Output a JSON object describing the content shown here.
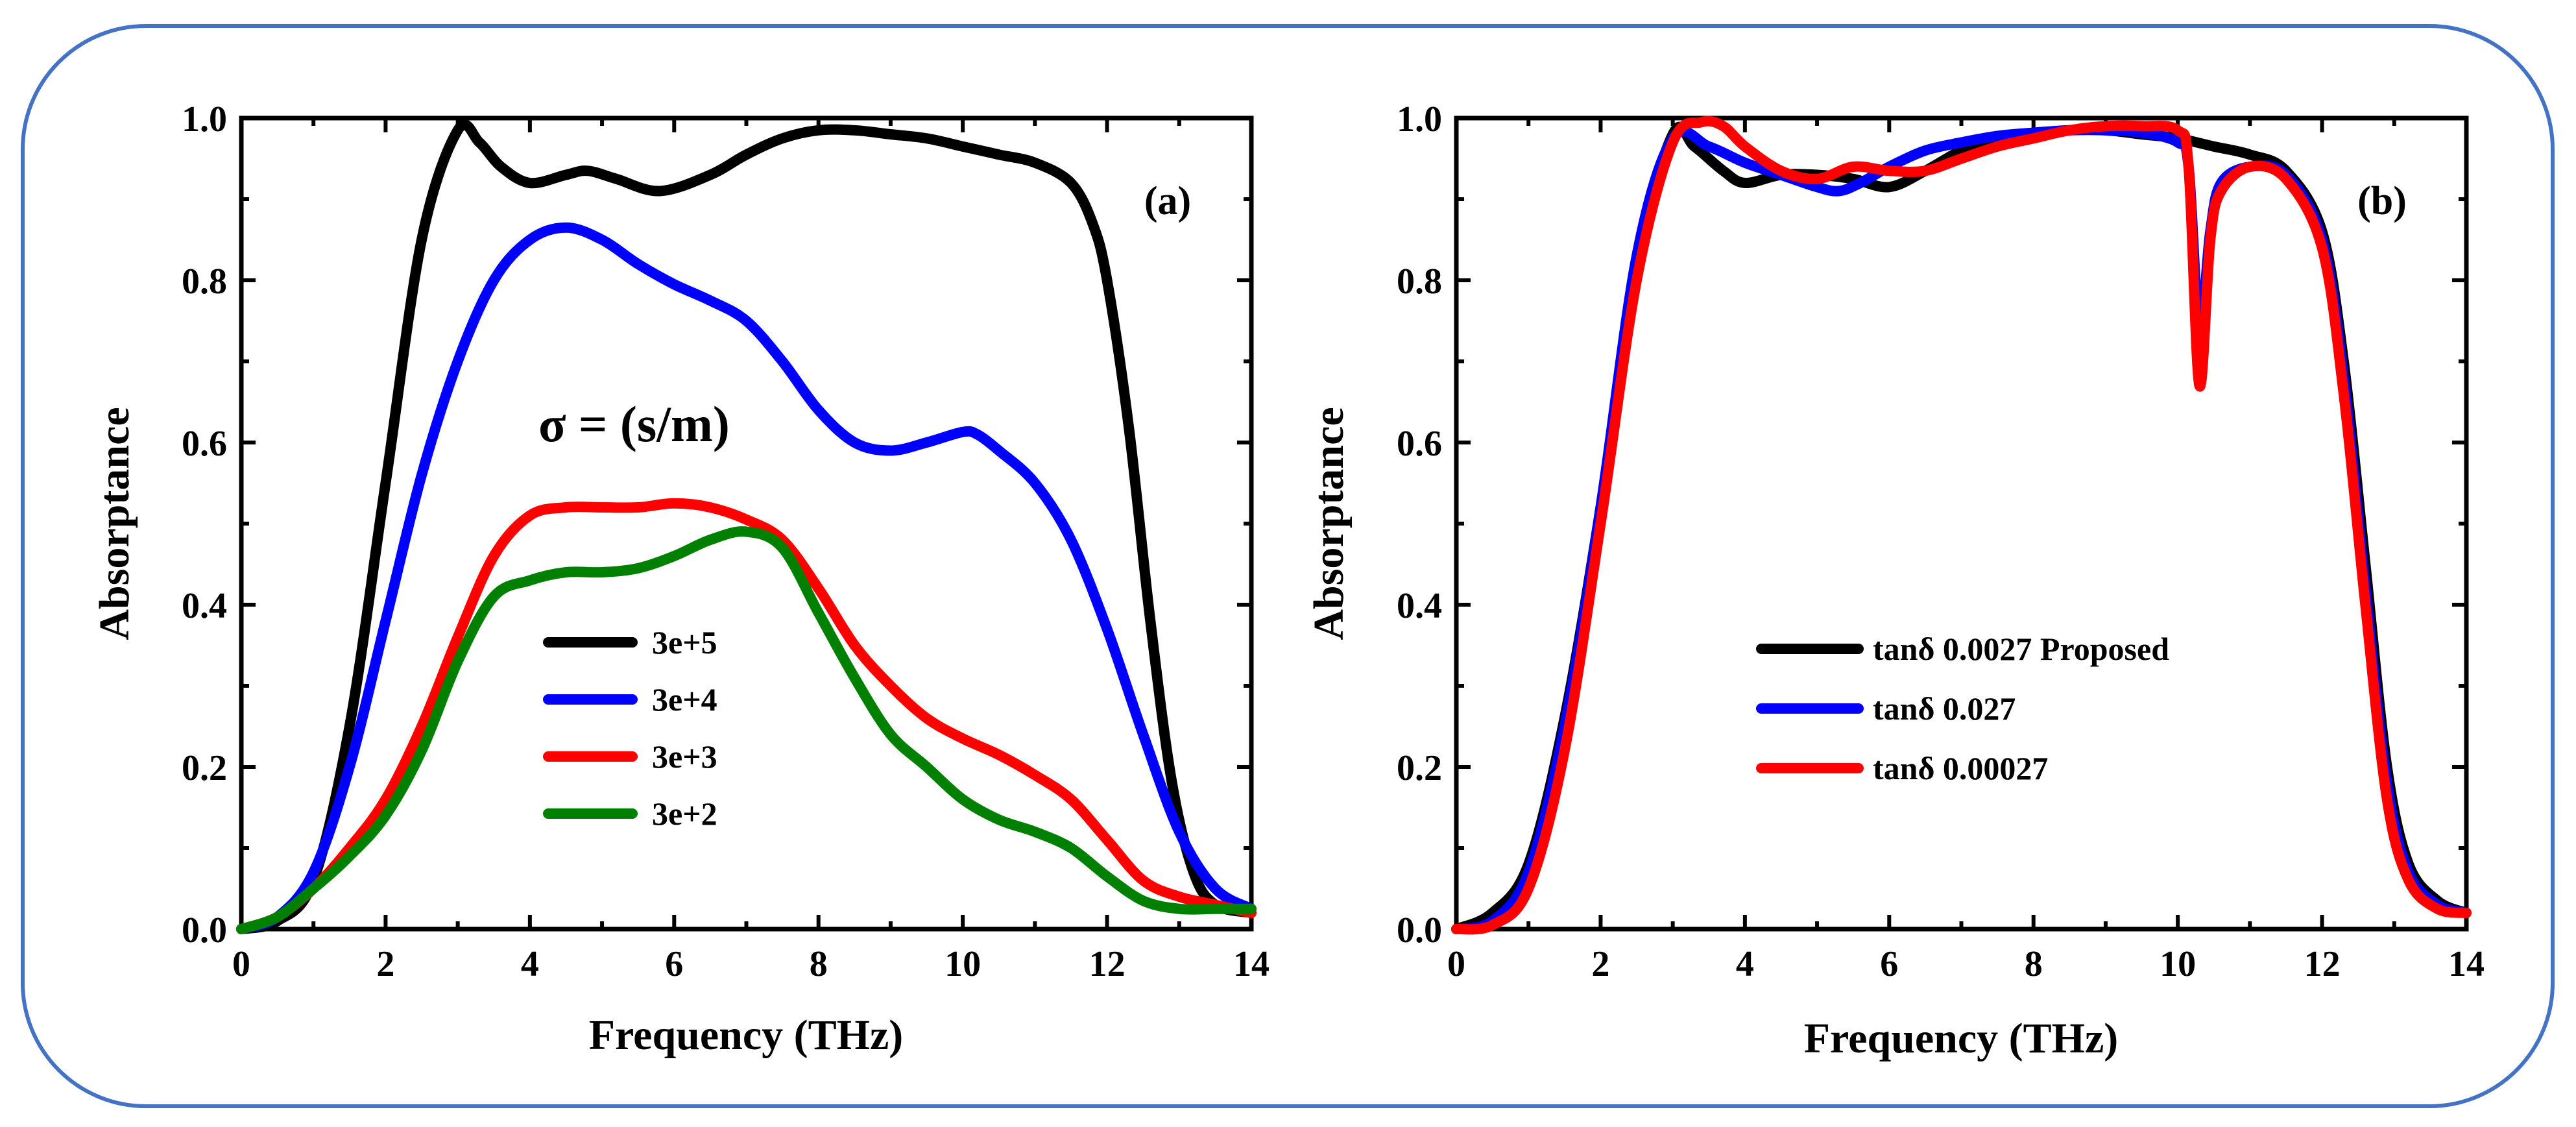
{
  "chart_data": [
    {
      "type": "line",
      "panel_label": "(a)",
      "xlabel": "Frequency (THz)",
      "ylabel": "Absorptance",
      "xlim": [
        0,
        14
      ],
      "ylim": [
        0,
        1.0
      ],
      "x_ticks": [
        "0",
        "2",
        "4",
        "6",
        "8",
        "10",
        "12",
        "14"
      ],
      "y_ticks": [
        "0.0",
        "0.2",
        "0.4",
        "0.6",
        "0.8",
        "1.0"
      ],
      "annotation": "σ = (s/m)",
      "legend_position": "center-left",
      "series": [
        {
          "name": "3e+5",
          "color": "#000000",
          "points": [
            [
              0,
              0
            ],
            [
              0.5,
              0.01
            ],
            [
              1,
              0.06
            ],
            [
              1.5,
              0.25
            ],
            [
              2,
              0.55
            ],
            [
              2.5,
              0.85
            ],
            [
              3,
              0.985
            ],
            [
              3.3,
              0.97
            ],
            [
              3.6,
              0.94
            ],
            [
              4,
              0.92
            ],
            [
              4.5,
              0.93
            ],
            [
              4.8,
              0.935
            ],
            [
              5.2,
              0.925
            ],
            [
              5.8,
              0.91
            ],
            [
              6.5,
              0.93
            ],
            [
              7,
              0.955
            ],
            [
              7.5,
              0.975
            ],
            [
              8,
              0.985
            ],
            [
              8.5,
              0.985
            ],
            [
              9,
              0.98
            ],
            [
              9.5,
              0.975
            ],
            [
              10,
              0.965
            ],
            [
              10.5,
              0.955
            ],
            [
              11,
              0.945
            ],
            [
              11.5,
              0.92
            ],
            [
              11.8,
              0.87
            ],
            [
              12,
              0.8
            ],
            [
              12.3,
              0.62
            ],
            [
              12.6,
              0.38
            ],
            [
              12.9,
              0.18
            ],
            [
              13.2,
              0.07
            ],
            [
              13.5,
              0.03
            ],
            [
              14,
              0.02
            ]
          ]
        },
        {
          "name": "3e+4",
          "color": "#0000ff",
          "points": [
            [
              0,
              0
            ],
            [
              0.5,
              0.015
            ],
            [
              1,
              0.07
            ],
            [
              1.5,
              0.2
            ],
            [
              2,
              0.38
            ],
            [
              2.5,
              0.56
            ],
            [
              3,
              0.7
            ],
            [
              3.5,
              0.8
            ],
            [
              4,
              0.85
            ],
            [
              4.5,
              0.865
            ],
            [
              5,
              0.85
            ],
            [
              5.5,
              0.82
            ],
            [
              6,
              0.795
            ],
            [
              6.5,
              0.775
            ],
            [
              7,
              0.75
            ],
            [
              7.5,
              0.7
            ],
            [
              8,
              0.64
            ],
            [
              8.5,
              0.6
            ],
            [
              9,
              0.59
            ],
            [
              9.5,
              0.6
            ],
            [
              10,
              0.613
            ],
            [
              10.2,
              0.61
            ],
            [
              10.5,
              0.59
            ],
            [
              11,
              0.55
            ],
            [
              11.5,
              0.48
            ],
            [
              12,
              0.37
            ],
            [
              12.5,
              0.24
            ],
            [
              13,
              0.12
            ],
            [
              13.5,
              0.05
            ],
            [
              14,
              0.025
            ]
          ]
        },
        {
          "name": "3e+3",
          "color": "#ff0000",
          "points": [
            [
              0,
              0
            ],
            [
              0.5,
              0.015
            ],
            [
              1,
              0.05
            ],
            [
              1.5,
              0.1
            ],
            [
              2,
              0.16
            ],
            [
              2.5,
              0.25
            ],
            [
              3,
              0.36
            ],
            [
              3.5,
              0.46
            ],
            [
              4,
              0.51
            ],
            [
              4.5,
              0.52
            ],
            [
              5,
              0.52
            ],
            [
              5.5,
              0.52
            ],
            [
              6,
              0.525
            ],
            [
              6.5,
              0.52
            ],
            [
              7,
              0.505
            ],
            [
              7.5,
              0.48
            ],
            [
              8,
              0.42
            ],
            [
              8.5,
              0.35
            ],
            [
              9,
              0.3
            ],
            [
              9.5,
              0.26
            ],
            [
              10,
              0.235
            ],
            [
              10.5,
              0.215
            ],
            [
              11,
              0.19
            ],
            [
              11.5,
              0.16
            ],
            [
              12,
              0.11
            ],
            [
              12.5,
              0.06
            ],
            [
              13,
              0.04
            ],
            [
              13.5,
              0.03
            ],
            [
              14,
              0.02
            ]
          ]
        },
        {
          "name": "3e+2",
          "color": "#008000",
          "points": [
            [
              0,
              0
            ],
            [
              0.5,
              0.015
            ],
            [
              1,
              0.05
            ],
            [
              1.5,
              0.09
            ],
            [
              2,
              0.14
            ],
            [
              2.5,
              0.22
            ],
            [
              3,
              0.33
            ],
            [
              3.5,
              0.41
            ],
            [
              4,
              0.43
            ],
            [
              4.5,
              0.44
            ],
            [
              5,
              0.44
            ],
            [
              5.5,
              0.445
            ],
            [
              6,
              0.46
            ],
            [
              6.5,
              0.48
            ],
            [
              7,
              0.49
            ],
            [
              7.5,
              0.47
            ],
            [
              8,
              0.39
            ],
            [
              8.5,
              0.31
            ],
            [
              9,
              0.24
            ],
            [
              9.5,
              0.2
            ],
            [
              10,
              0.16
            ],
            [
              10.5,
              0.135
            ],
            [
              11,
              0.12
            ],
            [
              11.5,
              0.1
            ],
            [
              12,
              0.065
            ],
            [
              12.5,
              0.035
            ],
            [
              13,
              0.025
            ],
            [
              13.5,
              0.025
            ],
            [
              14,
              0.025
            ]
          ]
        }
      ]
    },
    {
      "type": "line",
      "panel_label": "(b)",
      "xlabel": "Frequency (THz)",
      "ylabel": "Absorptance",
      "xlim": [
        0,
        14
      ],
      "ylim": [
        0,
        1.0
      ],
      "x_ticks": [
        "0",
        "2",
        "4",
        "6",
        "8",
        "10",
        "12",
        "14"
      ],
      "y_ticks": [
        "0.0",
        "0.2",
        "0.4",
        "0.6",
        "0.8",
        "1.0"
      ],
      "legend_position": "center",
      "series": [
        {
          "name": "tanδ 0.0027 Proposed",
          "color": "#000000",
          "points": [
            [
              0,
              0
            ],
            [
              0.5,
              0.02
            ],
            [
              1,
              0.08
            ],
            [
              1.5,
              0.26
            ],
            [
              2,
              0.52
            ],
            [
              2.5,
              0.82
            ],
            [
              3,
              0.98
            ],
            [
              3.3,
              0.965
            ],
            [
              3.7,
              0.935
            ],
            [
              4,
              0.92
            ],
            [
              4.5,
              0.93
            ],
            [
              5,
              0.93
            ],
            [
              5.5,
              0.925
            ],
            [
              6,
              0.915
            ],
            [
              6.5,
              0.935
            ],
            [
              7,
              0.96
            ],
            [
              7.5,
              0.975
            ],
            [
              8,
              0.98
            ],
            [
              8.5,
              0.985
            ],
            [
              9,
              0.985
            ],
            [
              9.5,
              0.98
            ],
            [
              10,
              0.975
            ],
            [
              10.5,
              0.965
            ],
            [
              11,
              0.955
            ],
            [
              11.5,
              0.935
            ],
            [
              12,
              0.86
            ],
            [
              12.3,
              0.7
            ],
            [
              12.6,
              0.45
            ],
            [
              12.9,
              0.2
            ],
            [
              13.2,
              0.08
            ],
            [
              13.6,
              0.035
            ],
            [
              14,
              0.02
            ]
          ]
        },
        {
          "name": "tanδ 0.027",
          "color": "#0000ff",
          "points": [
            [
              0,
              0
            ],
            [
              0.5,
              0.01
            ],
            [
              1,
              0.07
            ],
            [
              1.5,
              0.25
            ],
            [
              2,
              0.52
            ],
            [
              2.5,
              0.83
            ],
            [
              3,
              0.975
            ],
            [
              3.5,
              0.965
            ],
            [
              4,
              0.945
            ],
            [
              4.5,
              0.93
            ],
            [
              5,
              0.915
            ],
            [
              5.3,
              0.91
            ],
            [
              5.6,
              0.92
            ],
            [
              6,
              0.94
            ],
            [
              6.5,
              0.96
            ],
            [
              7,
              0.97
            ],
            [
              7.5,
              0.978
            ],
            [
              8,
              0.982
            ],
            [
              8.5,
              0.985
            ],
            [
              9,
              0.985
            ],
            [
              9.5,
              0.982
            ],
            [
              10,
              0.97
            ],
            [
              10.15,
              0.94
            ],
            [
              10.3,
              0.74
            ],
            [
              10.45,
              0.86
            ],
            [
              10.6,
              0.92
            ],
            [
              11,
              0.94
            ],
            [
              11.5,
              0.93
            ],
            [
              12,
              0.85
            ],
            [
              12.3,
              0.68
            ],
            [
              12.6,
              0.42
            ],
            [
              12.9,
              0.18
            ],
            [
              13.2,
              0.07
            ],
            [
              13.6,
              0.03
            ],
            [
              14,
              0.02
            ]
          ]
        },
        {
          "name": "tanδ 0.00027",
          "color": "#ff0000",
          "points": [
            [
              0,
              0
            ],
            [
              0.5,
              0.005
            ],
            [
              1,
              0.05
            ],
            [
              1.5,
              0.22
            ],
            [
              2,
              0.5
            ],
            [
              2.5,
              0.8
            ],
            [
              3,
              0.97
            ],
            [
              3.4,
              0.995
            ],
            [
              3.7,
              0.99
            ],
            [
              4,
              0.965
            ],
            [
              4.5,
              0.935
            ],
            [
              5,
              0.925
            ],
            [
              5.5,
              0.94
            ],
            [
              6,
              0.935
            ],
            [
              6.5,
              0.935
            ],
            [
              7,
              0.95
            ],
            [
              7.5,
              0.965
            ],
            [
              8,
              0.975
            ],
            [
              8.5,
              0.985
            ],
            [
              9,
              0.99
            ],
            [
              9.5,
              0.99
            ],
            [
              10,
              0.985
            ],
            [
              10.15,
              0.94
            ],
            [
              10.3,
              0.67
            ],
            [
              10.45,
              0.85
            ],
            [
              10.6,
              0.91
            ],
            [
              11,
              0.94
            ],
            [
              11.5,
              0.925
            ],
            [
              12,
              0.84
            ],
            [
              12.3,
              0.66
            ],
            [
              12.6,
              0.4
            ],
            [
              12.9,
              0.16
            ],
            [
              13.2,
              0.06
            ],
            [
              13.6,
              0.025
            ],
            [
              14,
              0.02
            ]
          ]
        }
      ]
    }
  ]
}
